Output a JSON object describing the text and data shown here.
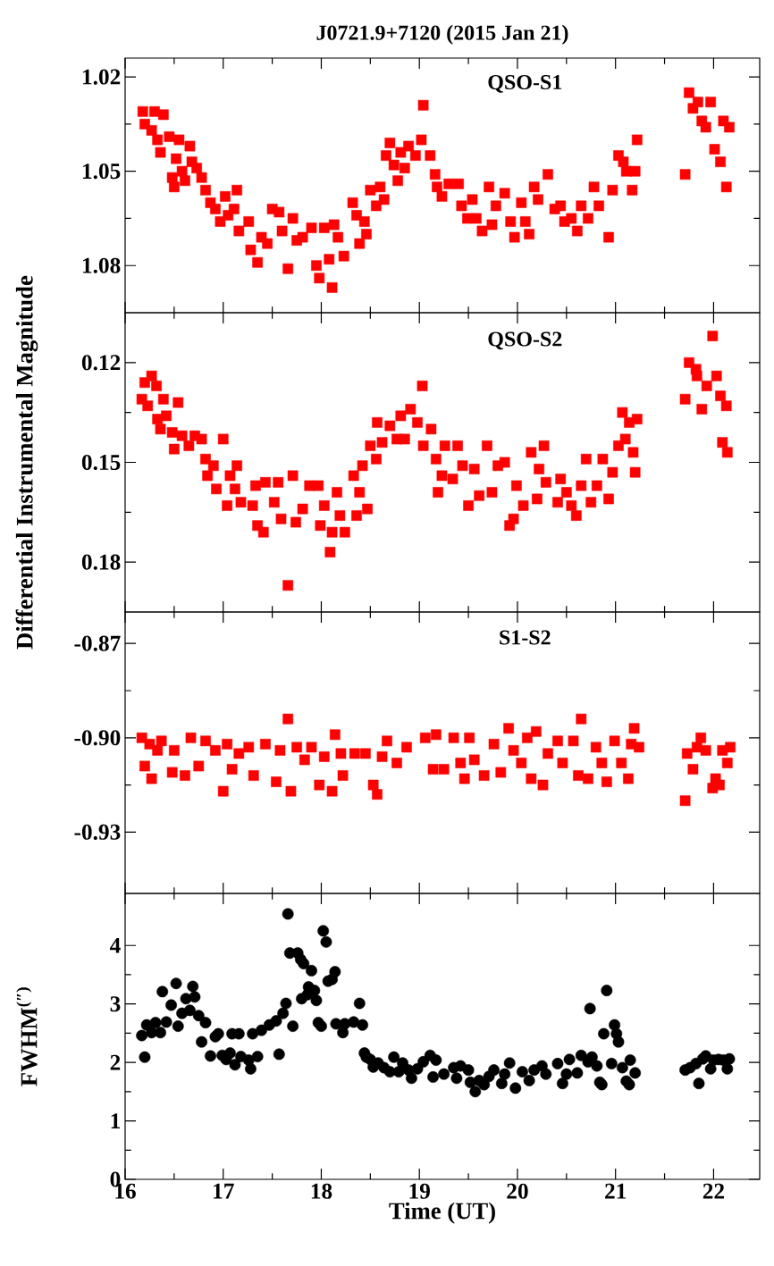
{
  "chart_data": [
    {
      "type": "scatter",
      "title": "J0721.9+7120 (2015 Jan 21)",
      "annotations": [
        "QSO-S1"
      ],
      "marker": "square",
      "color": "#ff0000",
      "tick_labels": "y",
      "xlim": [
        16.0,
        22.47
      ],
      "xticks": [
        16,
        17,
        18,
        19,
        20,
        21,
        22
      ],
      "ylim": [
        1.095,
        1.014
      ],
      "yticks": [
        1.02,
        1.05,
        1.08
      ],
      "x": [
        16.18,
        16.2,
        16.27,
        16.3,
        16.33,
        16.36,
        16.39,
        16.45,
        16.48,
        16.5,
        16.52,
        16.55,
        16.58,
        16.61,
        16.66,
        16.68,
        16.73,
        16.78,
        16.82,
        16.87,
        16.92,
        16.97,
        17.02,
        17.05,
        17.11,
        17.14,
        17.16,
        17.26,
        17.28,
        17.35,
        17.39,
        17.45,
        17.5,
        17.57,
        17.6,
        17.66,
        17.71,
        17.75,
        17.81,
        17.9,
        17.95,
        17.98,
        18.03,
        18.08,
        18.11,
        18.13,
        18.17,
        18.23,
        18.32,
        18.36,
        18.39,
        18.44,
        18.46,
        18.5,
        18.56,
        18.6,
        18.64,
        18.66,
        18.7,
        18.74,
        18.78,
        18.81,
        18.85,
        18.89,
        18.96,
        19.02,
        19.04,
        19.11,
        19.16,
        19.18,
        19.23,
        19.3,
        19.4,
        19.43,
        19.49,
        19.54,
        19.58,
        19.64,
        19.71,
        19.74,
        19.78,
        19.87,
        19.93,
        19.97,
        20.04,
        20.08,
        20.12,
        20.17,
        20.21,
        20.31,
        20.38,
        20.44,
        20.48,
        20.55,
        20.61,
        20.65,
        20.72,
        20.78,
        20.83,
        20.93,
        20.97,
        21.03,
        21.08,
        21.11,
        21.17,
        21.2,
        21.22,
        21.71,
        21.75,
        21.79,
        21.84,
        21.88,
        21.92,
        21.97,
        22.01,
        22.07,
        22.1,
        22.13,
        22.16
      ],
      "values": [
        1.031,
        1.035,
        1.037,
        1.031,
        1.04,
        1.044,
        1.032,
        1.039,
        1.052,
        1.055,
        1.046,
        1.04,
        1.05,
        1.053,
        1.042,
        1.047,
        1.049,
        1.052,
        1.056,
        1.06,
        1.062,
        1.066,
        1.058,
        1.064,
        1.062,
        1.056,
        1.069,
        1.066,
        1.075,
        1.079,
        1.071,
        1.073,
        1.062,
        1.063,
        1.069,
        1.081,
        1.065,
        1.072,
        1.071,
        1.068,
        1.08,
        1.084,
        1.068,
        1.078,
        1.087,
        1.067,
        1.071,
        1.077,
        1.06,
        1.064,
        1.073,
        1.066,
        1.07,
        1.056,
        1.061,
        1.055,
        1.059,
        1.045,
        1.041,
        1.048,
        1.053,
        1.044,
        1.049,
        1.042,
        1.045,
        1.04,
        1.029,
        1.045,
        1.051,
        1.055,
        1.058,
        1.054,
        1.054,
        1.061,
        1.065,
        1.059,
        1.065,
        1.069,
        1.055,
        1.067,
        1.061,
        1.057,
        1.066,
        1.071,
        1.06,
        1.066,
        1.07,
        1.055,
        1.059,
        1.051,
        1.062,
        1.061,
        1.066,
        1.065,
        1.069,
        1.061,
        1.065,
        1.055,
        1.061,
        1.071,
        1.056,
        1.045,
        1.047,
        1.05,
        1.056,
        1.05,
        1.04,
        1.051,
        1.025,
        1.03,
        1.028,
        1.034,
        1.036,
        1.028,
        1.043,
        1.047,
        1.034,
        1.055,
        1.036
      ]
    },
    {
      "type": "scatter",
      "ylabel": "Differential Instrumental Magnitude",
      "annotations": [
        "QSO-S2"
      ],
      "marker": "square",
      "color": "#ff0000",
      "tick_labels": "y",
      "xlim": [
        16.0,
        22.47
      ],
      "xticks": [
        16,
        17,
        18,
        19,
        20,
        21,
        22
      ],
      "ylim": [
        0.195,
        0.105
      ],
      "yticks": [
        0.12,
        0.15,
        0.18
      ],
      "x": [
        16.17,
        16.2,
        16.23,
        16.27,
        16.32,
        16.33,
        16.36,
        16.39,
        16.42,
        16.48,
        16.5,
        16.54,
        16.58,
        16.65,
        16.71,
        16.78,
        16.82,
        16.84,
        16.9,
        16.93,
        17.0,
        17.04,
        17.07,
        17.12,
        17.14,
        17.18,
        17.3,
        17.33,
        17.35,
        17.41,
        17.43,
        17.52,
        17.56,
        17.59,
        17.66,
        17.71,
        17.74,
        17.81,
        17.88,
        17.97,
        17.99,
        18.03,
        18.09,
        18.11,
        18.16,
        18.19,
        18.24,
        18.33,
        18.36,
        18.39,
        18.42,
        18.47,
        18.5,
        18.56,
        18.57,
        18.62,
        18.7,
        18.77,
        18.81,
        18.85,
        18.91,
        18.98,
        19.03,
        19.04,
        19.12,
        19.17,
        19.19,
        19.23,
        19.26,
        19.34,
        19.39,
        19.44,
        19.5,
        19.56,
        19.61,
        19.69,
        19.74,
        19.8,
        19.87,
        19.92,
        19.96,
        19.99,
        20.06,
        20.14,
        20.2,
        20.22,
        20.27,
        20.29,
        20.41,
        20.44,
        20.5,
        20.55,
        20.6,
        20.65,
        20.7,
        20.75,
        20.81,
        20.87,
        20.93,
        20.97,
        21.03,
        21.07,
        21.1,
        21.14,
        21.18,
        21.2,
        21.22,
        21.71,
        21.75,
        21.82,
        21.83,
        21.88,
        21.93,
        21.99,
        22.03,
        22.07,
        22.09,
        22.13,
        22.14
      ],
      "values": [
        0.131,
        0.126,
        0.133,
        0.124,
        0.127,
        0.137,
        0.14,
        0.131,
        0.136,
        0.141,
        0.146,
        0.132,
        0.142,
        0.145,
        0.142,
        0.143,
        0.149,
        0.154,
        0.151,
        0.158,
        0.143,
        0.163,
        0.154,
        0.158,
        0.151,
        0.162,
        0.163,
        0.157,
        0.169,
        0.171,
        0.156,
        0.162,
        0.156,
        0.167,
        0.187,
        0.154,
        0.168,
        0.164,
        0.157,
        0.157,
        0.169,
        0.163,
        0.177,
        0.171,
        0.159,
        0.166,
        0.171,
        0.154,
        0.166,
        0.159,
        0.151,
        0.164,
        0.145,
        0.149,
        0.138,
        0.144,
        0.139,
        0.143,
        0.136,
        0.143,
        0.134,
        0.138,
        0.127,
        0.145,
        0.14,
        0.149,
        0.159,
        0.154,
        0.145,
        0.155,
        0.145,
        0.151,
        0.163,
        0.152,
        0.16,
        0.145,
        0.159,
        0.151,
        0.15,
        0.169,
        0.167,
        0.157,
        0.163,
        0.147,
        0.161,
        0.152,
        0.145,
        0.156,
        0.162,
        0.155,
        0.159,
        0.163,
        0.166,
        0.157,
        0.149,
        0.162,
        0.157,
        0.149,
        0.161,
        0.153,
        0.145,
        0.135,
        0.143,
        0.138,
        0.147,
        0.153,
        0.137,
        0.131,
        0.12,
        0.122,
        0.124,
        0.134,
        0.127,
        0.112,
        0.124,
        0.13,
        0.144,
        0.133,
        0.147
      ]
    },
    {
      "type": "scatter",
      "annotations": [
        "S1-S2"
      ],
      "marker": "square",
      "color": "#ff0000",
      "tick_labels": "y",
      "xlim": [
        16.0,
        22.47
      ],
      "xticks": [
        16,
        17,
        18,
        19,
        20,
        21,
        22
      ],
      "ylim": [
        -0.9495,
        -0.86
      ],
      "yticks": [
        -0.93,
        {
          "value": -0.9,
          "label": "-0.90"
        },
        -0.87
      ],
      "x": [
        16.17,
        16.2,
        16.25,
        16.27,
        16.33,
        16.37,
        16.48,
        16.5,
        16.61,
        16.67,
        16.75,
        16.82,
        16.92,
        17.0,
        17.04,
        17.09,
        17.16,
        17.26,
        17.31,
        17.43,
        17.54,
        17.58,
        17.66,
        17.69,
        17.75,
        17.83,
        17.9,
        17.98,
        18.03,
        18.11,
        18.14,
        18.2,
        18.22,
        18.34,
        18.45,
        18.53,
        18.57,
        18.62,
        18.67,
        18.77,
        18.87,
        19.06,
        19.14,
        19.17,
        19.25,
        19.35,
        19.42,
        19.46,
        19.51,
        19.56,
        19.66,
        19.76,
        19.83,
        19.91,
        19.96,
        20.04,
        20.1,
        20.14,
        20.19,
        20.26,
        20.31,
        20.41,
        20.46,
        20.57,
        20.62,
        20.65,
        20.72,
        20.8,
        20.86,
        20.91,
        20.99,
        21.06,
        21.13,
        21.16,
        21.19,
        21.24,
        21.71,
        21.73,
        21.79,
        21.83,
        21.87,
        21.92,
        21.99,
        22.02,
        22.06,
        22.09,
        22.14,
        22.17
      ],
      "values": [
        -0.9,
        -0.909,
        -0.902,
        -0.913,
        -0.904,
        -0.901,
        -0.911,
        -0.904,
        -0.912,
        -0.9,
        -0.909,
        -0.901,
        -0.904,
        -0.917,
        -0.902,
        -0.91,
        -0.905,
        -0.903,
        -0.912,
        -0.902,
        -0.914,
        -0.904,
        -0.894,
        -0.917,
        -0.903,
        -0.907,
        -0.903,
        -0.915,
        -0.906,
        -0.917,
        -0.899,
        -0.905,
        -0.912,
        -0.905,
        -0.905,
        -0.915,
        -0.918,
        -0.906,
        -0.901,
        -0.908,
        -0.903,
        -0.9,
        -0.91,
        -0.899,
        -0.91,
        -0.9,
        -0.908,
        -0.913,
        -0.9,
        -0.907,
        -0.912,
        -0.902,
        -0.911,
        -0.897,
        -0.904,
        -0.908,
        -0.9,
        -0.913,
        -0.898,
        -0.915,
        -0.905,
        -0.901,
        -0.908,
        -0.901,
        -0.912,
        -0.894,
        -0.913,
        -0.903,
        -0.908,
        -0.914,
        -0.901,
        -0.908,
        -0.913,
        -0.902,
        -0.897,
        -0.903,
        -0.92,
        -0.905,
        -0.91,
        -0.903,
        -0.9,
        -0.904,
        -0.916,
        -0.913,
        -0.915,
        -0.904,
        -0.908,
        -0.903
      ]
    },
    {
      "type": "scatter",
      "xlabel": "Time (UT)",
      "ylabel": "FWHM$^{(″)}$",
      "marker": "circle",
      "color": "#000000",
      "xlim": [
        16.0,
        22.47
      ],
      "xticks": [
        16,
        17,
        18,
        19,
        20,
        21,
        22
      ],
      "ylim": [
        0,
        4.89
      ],
      "yticks": [
        0,
        1,
        2,
        3,
        4
      ],
      "x": [
        16.17,
        16.2,
        16.22,
        16.27,
        16.31,
        16.36,
        16.38,
        16.42,
        16.47,
        16.52,
        16.54,
        16.58,
        16.62,
        16.66,
        16.69,
        16.71,
        16.75,
        16.78,
        16.82,
        16.87,
        16.92,
        16.95,
        16.99,
        17.03,
        17.07,
        17.09,
        17.12,
        17.16,
        17.18,
        17.26,
        17.28,
        17.3,
        17.35,
        17.39,
        17.47,
        17.54,
        17.57,
        17.61,
        17.64,
        17.66,
        17.68,
        17.71,
        17.76,
        17.79,
        17.8,
        17.82,
        17.86,
        17.87,
        17.9,
        17.93,
        17.95,
        17.97,
        18.0,
        18.02,
        18.05,
        18.07,
        18.11,
        18.14,
        18.15,
        18.22,
        18.24,
        18.33,
        18.39,
        18.42,
        18.44,
        18.46,
        18.5,
        18.53,
        18.58,
        18.64,
        18.7,
        18.74,
        18.79,
        18.83,
        18.89,
        18.92,
        18.98,
        19.04,
        19.11,
        19.14,
        19.17,
        19.25,
        19.35,
        19.38,
        19.42,
        19.5,
        19.52,
        19.57,
        19.61,
        19.66,
        19.71,
        19.76,
        19.84,
        19.87,
        19.92,
        19.98,
        20.05,
        20.12,
        20.17,
        20.25,
        20.29,
        20.41,
        20.46,
        20.5,
        20.53,
        20.61,
        20.65,
        20.72,
        20.74,
        20.76,
        20.81,
        20.84,
        20.86,
        20.88,
        20.91,
        20.96,
        20.99,
        21.01,
        21.03,
        21.07,
        21.11,
        21.14,
        21.15,
        21.2,
        21.71,
        21.76,
        21.82,
        21.85,
        21.89,
        21.92,
        21.97,
        22.0,
        22.05,
        22.1,
        22.14,
        22.16
      ],
      "values": [
        2.46,
        2.09,
        2.64,
        2.51,
        2.68,
        2.51,
        3.21,
        2.69,
        2.98,
        3.35,
        2.62,
        2.84,
        3.09,
        2.89,
        3.3,
        3.12,
        2.8,
        2.35,
        2.68,
        2.11,
        2.44,
        2.49,
        2.12,
        2.05,
        2.16,
        2.49,
        1.96,
        2.49,
        2.1,
        2.04,
        1.89,
        2.49,
        2.1,
        2.55,
        2.64,
        2.71,
        2.14,
        2.84,
        3.01,
        4.54,
        3.87,
        2.62,
        3.87,
        3.76,
        3.09,
        3.69,
        3.16,
        3.29,
        3.57,
        3.23,
        3.06,
        2.68,
        2.62,
        4.25,
        4.06,
        3.39,
        3.42,
        3.55,
        2.66,
        2.51,
        2.66,
        2.69,
        3.01,
        2.64,
        2.16,
        2.09,
        2.05,
        1.92,
        1.99,
        1.91,
        1.84,
        2.09,
        1.84,
        1.99,
        1.87,
        1.73,
        1.89,
        2.01,
        2.12,
        1.75,
        2.04,
        1.8,
        1.91,
        1.73,
        1.94,
        1.87,
        1.66,
        1.5,
        1.69,
        1.62,
        1.76,
        1.87,
        1.64,
        1.8,
        1.99,
        1.56,
        1.84,
        1.69,
        1.87,
        1.94,
        1.8,
        1.98,
        1.64,
        1.8,
        2.05,
        1.82,
        2.12,
        2.01,
        2.92,
        2.09,
        1.94,
        1.66,
        1.62,
        2.49,
        3.23,
        1.98,
        2.64,
        2.49,
        2.35,
        1.91,
        1.68,
        1.62,
        2.04,
        1.82,
        1.87,
        1.91,
        1.98,
        1.64,
        2.06,
        2.11,
        1.89,
        2.04,
        2.05,
        2.04,
        1.89,
        2.06
      ]
    }
  ]
}
